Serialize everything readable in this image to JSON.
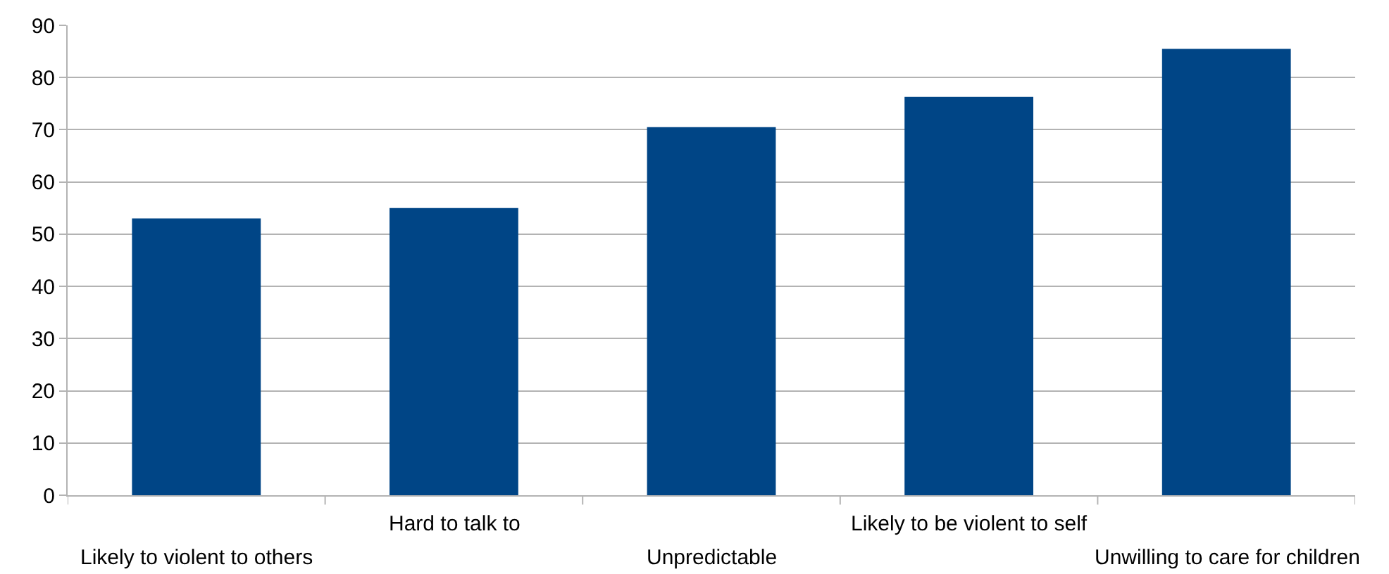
{
  "chart_data": {
    "type": "bar",
    "categories": [
      "Likely to violent to others",
      "Hard to talk to",
      "Unpredictable",
      "Likely to be violent to self",
      "Unwilling to care for children"
    ],
    "values": [
      53,
      55,
      70.5,
      76.3,
      85.5
    ],
    "color": "#004586",
    "ylim": [
      0,
      90
    ],
    "yticks": [
      0,
      10,
      20,
      30,
      40,
      50,
      60,
      70,
      80,
      90
    ],
    "grid": "y",
    "legend": false
  }
}
